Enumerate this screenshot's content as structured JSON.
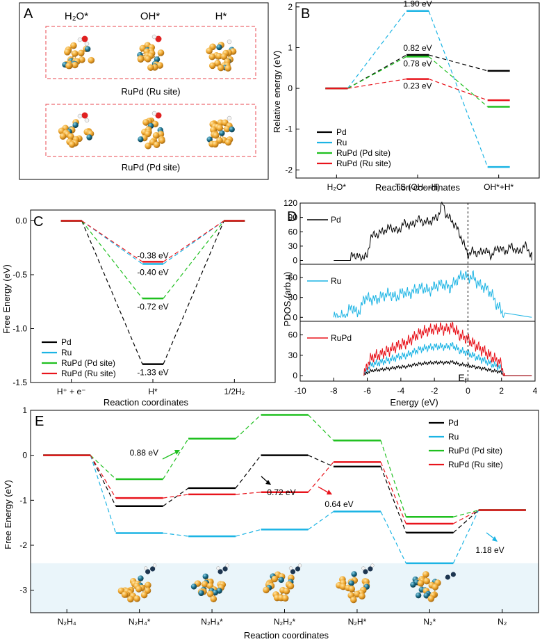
{
  "colors": {
    "pd": "#000000",
    "ru": "#1cb4e4",
    "rupd_pd": "#1fc01f",
    "rupd_ru": "#e8141c",
    "frame_dash": "#e8474f",
    "gold": "#e8a52a",
    "teal": "#1b6e8a",
    "band": "#eaf5fa"
  },
  "panelA": {
    "label": "A",
    "headers": [
      "H₂O*",
      "OH*",
      "H*"
    ],
    "row1_caption": "RuPd (Ru site)",
    "row2_caption": "RuPd (Pd site)"
  },
  "panelB": {
    "label": "B",
    "chart_data": {
      "type": "line",
      "title": "",
      "ylabel": "Relative energy (eV)",
      "xlabel": "Reaction coordinates",
      "categories": [
        "H₂O*",
        "TS (OH- -H)",
        "OH*+H*"
      ],
      "ylim": [
        -2.2,
        2.1
      ],
      "yticks": [
        -2,
        -1,
        0,
        1,
        2
      ],
      "series": [
        {
          "name": "Pd",
          "color": "#000000",
          "values": [
            0,
            0.82,
            0.43
          ]
        },
        {
          "name": "Ru",
          "color": "#1cb4e4",
          "values": [
            0,
            1.9,
            -1.93
          ]
        },
        {
          "name": "RuPd (Pd site)",
          "color": "#1fc01f",
          "values": [
            0,
            0.78,
            -0.45
          ]
        },
        {
          "name": "RuPd (Ru site)",
          "color": "#e8141c",
          "values": [
            0,
            0.23,
            -0.29
          ]
        }
      ],
      "annotations": [
        {
          "text": "1.90 eV",
          "series": "Ru"
        },
        {
          "text": "0.82 eV",
          "series": "Pd"
        },
        {
          "text": "0.78 eV",
          "series": "RuPd (Pd site)"
        },
        {
          "text": "0.23 eV",
          "series": "RuPd (Ru site)"
        }
      ]
    }
  },
  "panelC": {
    "label": "C",
    "chart_data": {
      "type": "line",
      "ylabel": "Free Energy (eV)",
      "xlabel": "Reaction coordinates",
      "categories": [
        "H⁺ + e⁻",
        "H*",
        "1/2H₂"
      ],
      "ylim": [
        -1.5,
        0.1
      ],
      "yticks": [
        -1.5,
        -1.0,
        -0.5,
        0.0
      ],
      "series": [
        {
          "name": "Pd",
          "color": "#000000",
          "values": [
            0,
            -1.33,
            0
          ]
        },
        {
          "name": "Ru",
          "color": "#1cb4e4",
          "values": [
            0,
            -0.4,
            0
          ]
        },
        {
          "name": "RuPd (Pd site)",
          "color": "#1fc01f",
          "values": [
            0,
            -0.72,
            0
          ]
        },
        {
          "name": "RuPd (Ru site)",
          "color": "#e8141c",
          "values": [
            0,
            -0.38,
            0
          ]
        }
      ],
      "annotations": [
        {
          "text": "-0.38 eV",
          "series": "RuPd (Ru site)"
        },
        {
          "text": "-0.40 eV",
          "series": "Ru"
        },
        {
          "text": "-0.72 eV",
          "series": "RuPd (Pd site)"
        },
        {
          "text": "-1.33 eV",
          "series": "Pd"
        }
      ]
    }
  },
  "panelD": {
    "label": "D",
    "chart_data": {
      "type": "line",
      "xlabel": "Energy (eV)",
      "ylabel": "PDOS (arb.u)",
      "xlim": [
        -10,
        4
      ],
      "xticks": [
        -10,
        -8,
        -6,
        -4,
        -2,
        0,
        2,
        4
      ],
      "fermi_label": "E",
      "fermi_sub": "f",
      "subplots": [
        {
          "name": "Pd",
          "color": "#000000",
          "ylim": [
            -8,
            120
          ],
          "yticks": [
            0,
            30,
            60,
            90,
            120
          ],
          "profile": {
            "x": [
              -8.0,
              -7.0,
              -6.9,
              -6.5,
              -6.3,
              -6.0,
              -5.8,
              -5.4,
              -5.0,
              -4.6,
              -4.2,
              -3.8,
              -3.4,
              -3.0,
              -2.6,
              -2.2,
              -1.8,
              -1.5,
              -1.3,
              -1.0,
              -0.7,
              -0.4,
              -0.2,
              0.0,
              0.3,
              0.6,
              1.0,
              1.4,
              1.8,
              2.2,
              2.6,
              3.0,
              3.4,
              3.8
            ],
            "y": [
              0,
              0,
              15,
              6,
              8,
              8,
              50,
              55,
              62,
              70,
              60,
              78,
              72,
              86,
              80,
              82,
              92,
              120,
              95,
              85,
              70,
              48,
              30,
              12,
              20,
              14,
              22,
              10,
              28,
              18,
              30,
              16,
              32,
              10
            ],
            "baseline": 0
          }
        },
        {
          "name": "Ru",
          "color": "#1cb4e4",
          "ylim": [
            -6,
            80
          ],
          "yticks": [
            0,
            30,
            60
          ],
          "profile": {
            "x": [
              -8.0,
              -7.2,
              -7.0,
              -6.7,
              -6.4,
              -6.2,
              -5.9,
              -5.5,
              -5.1,
              -4.7,
              -4.3,
              -3.9,
              -3.5,
              -3.1,
              -2.7,
              -2.3,
              -1.9,
              -1.5,
              -1.1,
              -0.7,
              -0.3,
              0.0,
              0.3,
              0.6,
              1.0,
              1.4,
              1.7,
              2.0,
              2.2
            ],
            "y": [
              0,
              2,
              18,
              8,
              10,
              30,
              28,
              26,
              32,
              36,
              30,
              38,
              35,
              42,
              45,
              40,
              48,
              50,
              44,
              55,
              65,
              60,
              62,
              50,
              45,
              36,
              20,
              10,
              0
            ],
            "baseline": 0
          }
        },
        {
          "name": "RuPd",
          "color": "#e8141c",
          "ylim": [
            -8,
            80
          ],
          "yticks": [
            0,
            30,
            60
          ],
          "profile": {
            "x": [
              -6.2,
              -6.0,
              -5.7,
              -5.3,
              -4.9,
              -4.5,
              -4.1,
              -3.7,
              -3.3,
              -2.9,
              -2.5,
              -2.1,
              -1.7,
              -1.3,
              -0.9,
              -0.5,
              -0.1,
              0.3,
              0.7,
              1.1,
              1.5,
              1.9,
              2.2
            ],
            "y": [
              0,
              16,
              28,
              30,
              35,
              40,
              45,
              48,
              55,
              62,
              66,
              68,
              70,
              68,
              72,
              60,
              55,
              48,
              40,
              34,
              26,
              20,
              0
            ],
            "baseline": 0
          },
          "extra_curves": [
            {
              "name": "Ru component",
              "color": "#1cb4e4",
              "scale": 0.62
            },
            {
              "name": "Pd component",
              "color": "#000000",
              "scale": 0.28
            }
          ]
        }
      ]
    }
  },
  "panelE": {
    "label": "E",
    "chart_data": {
      "type": "line",
      "ylabel": "Free Energy (eV)",
      "xlabel": "Reaction coordinates",
      "categories": [
        "N₂H₄",
        "N₂H₄*",
        "N₂H₃*",
        "N₂H₂*",
        "N₂H*",
        "N₂*",
        "N₂"
      ],
      "ylim": [
        -3.5,
        1.0
      ],
      "yticks": [
        -3,
        -2,
        -1,
        0,
        1
      ],
      "series": [
        {
          "name": "Pd",
          "color": "#000000",
          "values": [
            0,
            -1.13,
            -0.73,
            0,
            -0.25,
            -1.72,
            -1.22
          ]
        },
        {
          "name": "Ru",
          "color": "#1cb4e4",
          "values": [
            0,
            -1.73,
            -1.8,
            -1.65,
            -1.25,
            -2.4,
            -1.22
          ]
        },
        {
          "name": "RuPd (Pd site)",
          "color": "#1fc01f",
          "values": [
            0,
            -0.53,
            0.37,
            0.9,
            0.33,
            -1.37,
            -1.22
          ]
        },
        {
          "name": "RuPd (Ru site)",
          "color": "#e8141c",
          "values": [
            0,
            -0.95,
            -0.87,
            -0.82,
            -0.15,
            -1.52,
            -1.22
          ]
        }
      ],
      "annotations": [
        {
          "text": "0.88 eV",
          "series": "RuPd (Pd site)"
        },
        {
          "text": "0.72 eV",
          "series": "Pd"
        },
        {
          "text": "0.64 eV",
          "series": "RuPd (Ru site)"
        },
        {
          "text": "1.18 eV",
          "series": "Ru"
        }
      ]
    }
  }
}
